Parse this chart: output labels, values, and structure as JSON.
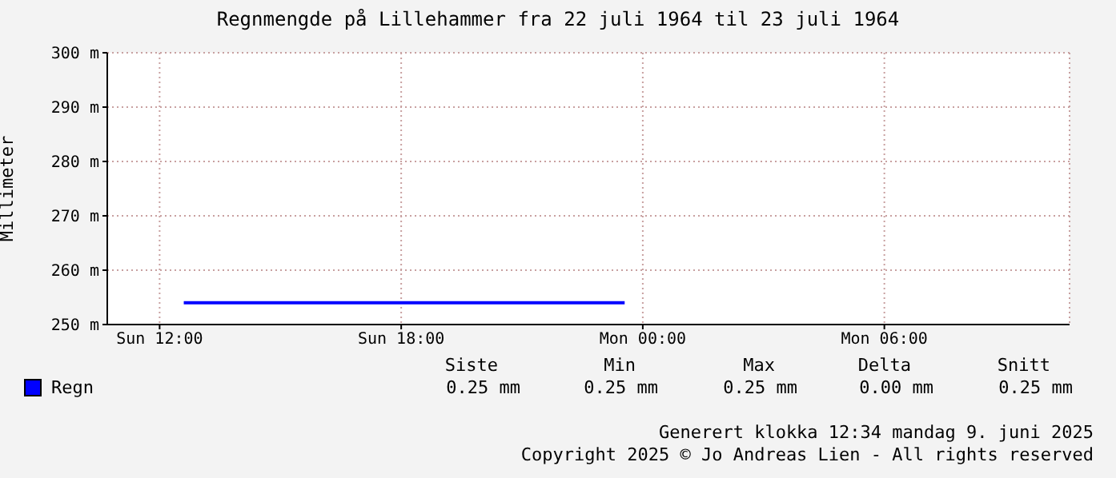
{
  "chart_data": {
    "type": "line",
    "title": "Regnmengde på Lillehammer fra 22 juli 1964 til 23 juli 1964",
    "ylabel": "Millimeter",
    "x": [
      "1964-07-22T12:36",
      "1964-07-22T23:33"
    ],
    "series": [
      {
        "name": "Regn",
        "color": "#0000ff",
        "values": [
          254,
          254
        ]
      }
    ],
    "xlim": [
      "1964-07-22T10:42",
      "1964-07-23T10:36"
    ],
    "xticks": [
      {
        "value": "1964-07-22T12:00",
        "label": "Sun 12:00"
      },
      {
        "value": "1964-07-22T18:00",
        "label": "Sun 18:00"
      },
      {
        "value": "1964-07-23T00:00",
        "label": "Mon 00:00"
      },
      {
        "value": "1964-07-23T06:00",
        "label": "Mon 06:00"
      }
    ],
    "ylim": [
      250,
      300
    ],
    "yticks": [
      {
        "value": 250,
        "label": "250 m"
      },
      {
        "value": 260,
        "label": "260 m"
      },
      {
        "value": 270,
        "label": "270 m"
      },
      {
        "value": 280,
        "label": "280 m"
      },
      {
        "value": 290,
        "label": "290 m"
      },
      {
        "value": 300,
        "label": "300 m"
      }
    ],
    "grid": true,
    "legend": "bottom left",
    "annotations": [
      "Siste",
      "Min",
      "Max",
      "Delta",
      "Snitt",
      "0.25 mm",
      "0.25 mm",
      "0.25 mm",
      "0.00 mm",
      "0.25 mm",
      "Generert klokka 12:34 mandag 9. juni 2025",
      "Copyright 2025 © Jo Andreas Lien - All rights reserved"
    ]
  }
}
